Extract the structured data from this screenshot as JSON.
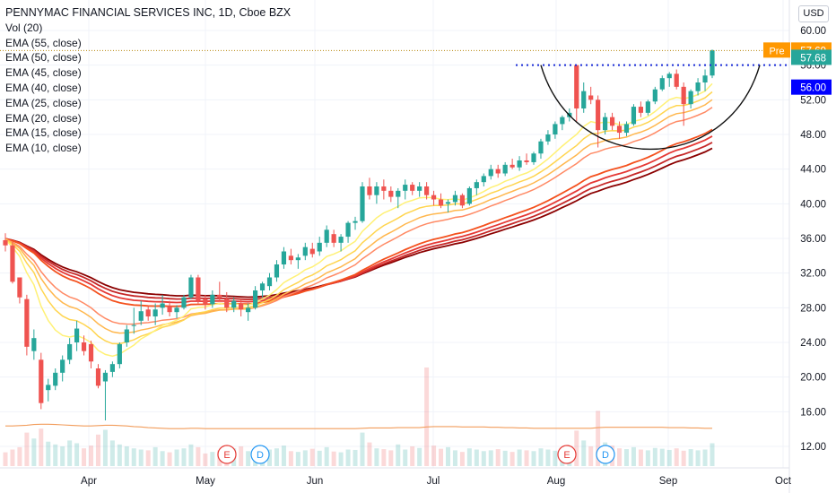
{
  "chart_data": {
    "type": "candlestick",
    "title": "PENNYMAC FINANCIAL SERVICES INC, 1D, Cboe BZX",
    "currency": "USD",
    "indicators": [
      "Vol (20)",
      "EMA (55, close)",
      "EMA (50, close)",
      "EMA (45, close)",
      "EMA (40, close)",
      "EMA (25, close)",
      "EMA (20, close)",
      "EMA (15, close)",
      "EMA (10, close)"
    ],
    "y_ticks": [
      "60.00",
      "56.00",
      "52.00",
      "48.00",
      "44.00",
      "40.00",
      "36.00",
      "32.00",
      "28.00",
      "24.00",
      "20.00",
      "16.00",
      "12.00"
    ],
    "ylim": [
      8.3,
      61.6
    ],
    "x_labels": [
      "Apr",
      "May",
      "Jun",
      "Jul",
      "Aug",
      "Sep",
      "Oct"
    ],
    "price_labels": [
      {
        "text": "Pre",
        "value": "57.69",
        "color": "#ff9800"
      },
      {
        "text": "",
        "value": "57.68",
        "color": "#0a66c2"
      },
      {
        "text": "",
        "value": "56.00",
        "color": "#0000ff"
      }
    ],
    "resistance_level": 56.0,
    "prepost_level": 57.69,
    "events": [
      {
        "label": "E",
        "type": "earnings",
        "month": "May"
      },
      {
        "label": "D",
        "type": "dividend",
        "month": "May"
      },
      {
        "label": "E",
        "type": "earnings",
        "month": "Aug"
      },
      {
        "label": "D",
        "type": "dividend",
        "month": "Aug"
      }
    ],
    "candles": [
      [
        35.8,
        36.6,
        34.5,
        35.2
      ],
      [
        35.2,
        35.6,
        30.8,
        31.0
      ],
      [
        31.5,
        31.5,
        28.5,
        29.2
      ],
      [
        29.0,
        29.5,
        22.5,
        23.5
      ],
      [
        23.0,
        25.5,
        22.0,
        24.5
      ],
      [
        22.0,
        22.8,
        16.3,
        17.0
      ],
      [
        18.5,
        19.8,
        17.2,
        19.1
      ],
      [
        19.0,
        21.0,
        18.5,
        20.5
      ],
      [
        20.5,
        22.5,
        19.5,
        22.0
      ],
      [
        22.0,
        24.5,
        21.5,
        23.8
      ],
      [
        24.0,
        26.5,
        23.0,
        25.6
      ],
      [
        24.0,
        24.8,
        22.5,
        23.0
      ],
      [
        23.8,
        24.2,
        21.0,
        21.8
      ],
      [
        21.0,
        21.5,
        18.7,
        19.0
      ],
      [
        19.5,
        20.8,
        15.0,
        20.5
      ],
      [
        20.6,
        21.8,
        20.0,
        21.5
      ],
      [
        21.5,
        24.0,
        21.0,
        23.8
      ],
      [
        24.0,
        26.0,
        23.5,
        25.5
      ],
      [
        26.0,
        28.0,
        25.0,
        26.0
      ],
      [
        26.5,
        28.8,
        26.0,
        27.6
      ],
      [
        27.8,
        28.2,
        26.5,
        27.0
      ],
      [
        27.0,
        28.5,
        26.0,
        27.8
      ],
      [
        28.0,
        29.5,
        27.2,
        28.5
      ],
      [
        28.2,
        28.8,
        27.0,
        27.5
      ],
      [
        27.5,
        28.3,
        26.8,
        28.0
      ],
      [
        28.0,
        29.5,
        27.8,
        29.2
      ],
      [
        29.2,
        31.8,
        29.0,
        31.5
      ],
      [
        31.5,
        31.8,
        28.5,
        28.8
      ],
      [
        29.0,
        29.5,
        27.8,
        28.4
      ],
      [
        28.4,
        30.0,
        28.0,
        29.5
      ],
      [
        29.5,
        31.0,
        28.7,
        29.2
      ],
      [
        29.0,
        29.8,
        27.5,
        28.0
      ],
      [
        28.0,
        29.2,
        27.5,
        28.8
      ],
      [
        28.5,
        29.0,
        27.0,
        27.8
      ],
      [
        27.5,
        28.5,
        26.5,
        28.0
      ],
      [
        28.0,
        30.5,
        27.8,
        30.0
      ],
      [
        30.0,
        31.0,
        29.2,
        30.8
      ],
      [
        30.5,
        32.0,
        30.0,
        31.5
      ],
      [
        31.5,
        33.5,
        31.0,
        33.0
      ],
      [
        33.0,
        35.0,
        32.5,
        34.5
      ],
      [
        34.0,
        34.8,
        33.0,
        33.5
      ],
      [
        33.5,
        34.2,
        32.5,
        33.8
      ],
      [
        34.0,
        35.5,
        33.5,
        35.0
      ],
      [
        34.8,
        35.5,
        33.8,
        34.2
      ],
      [
        34.5,
        36.2,
        34.0,
        35.5
      ],
      [
        35.5,
        37.5,
        35.0,
        37.0
      ],
      [
        36.5,
        37.0,
        35.0,
        35.5
      ],
      [
        35.5,
        36.5,
        34.5,
        36.2
      ],
      [
        36.2,
        38.0,
        35.5,
        37.8
      ],
      [
        37.8,
        38.5,
        37.0,
        38.0
      ],
      [
        38.0,
        42.5,
        37.8,
        42.0
      ],
      [
        42.0,
        43.0,
        40.5,
        41.0
      ],
      [
        41.0,
        42.5,
        40.0,
        42.0
      ],
      [
        42.0,
        42.8,
        40.5,
        41.5
      ],
      [
        41.5,
        42.0,
        40.2,
        40.8
      ],
      [
        40.8,
        41.8,
        39.5,
        41.5
      ],
      [
        41.5,
        42.8,
        40.5,
        42.2
      ],
      [
        42.2,
        42.5,
        41.0,
        41.5
      ],
      [
        41.5,
        42.5,
        40.8,
        42.0
      ],
      [
        42.0,
        42.5,
        40.5,
        41.0
      ],
      [
        41.0,
        41.5,
        39.8,
        40.5
      ],
      [
        40.5,
        41.2,
        39.5,
        39.8
      ],
      [
        40.0,
        40.5,
        39.0,
        40.2
      ],
      [
        40.2,
        41.5,
        39.8,
        41.0
      ],
      [
        41.0,
        41.2,
        39.5,
        39.8
      ],
      [
        40.0,
        42.0,
        39.8,
        41.8
      ],
      [
        41.8,
        42.8,
        41.0,
        42.5
      ],
      [
        42.5,
        43.5,
        42.0,
        43.2
      ],
      [
        43.2,
        44.5,
        42.8,
        44.0
      ],
      [
        44.0,
        44.5,
        43.0,
        43.5
      ],
      [
        43.5,
        44.8,
        43.2,
        44.5
      ],
      [
        44.5,
        45.2,
        44.0,
        44.2
      ],
      [
        44.2,
        45.5,
        43.8,
        45.0
      ],
      [
        45.0,
        45.8,
        44.5,
        44.8
      ],
      [
        44.8,
        46.0,
        44.5,
        45.8
      ],
      [
        45.8,
        47.5,
        45.2,
        47.2
      ],
      [
        47.2,
        48.5,
        46.8,
        48.0
      ],
      [
        48.0,
        49.5,
        47.5,
        49.2
      ],
      [
        49.2,
        50.2,
        48.5,
        50.0
      ],
      [
        50.0,
        51.0,
        49.5,
        50.5
      ],
      [
        56.0,
        56.0,
        49.5,
        51.0
      ],
      [
        51.0,
        54.0,
        50.5,
        53.0
      ],
      [
        52.5,
        53.5,
        51.5,
        52.0
      ],
      [
        52.0,
        52.5,
        46.5,
        48.5
      ],
      [
        48.5,
        50.5,
        48.0,
        50.0
      ],
      [
        50.0,
        50.5,
        48.5,
        49.0
      ],
      [
        49.0,
        49.5,
        47.5,
        48.2
      ],
      [
        48.2,
        49.5,
        47.8,
        49.2
      ],
      [
        49.2,
        51.5,
        49.0,
        51.2
      ],
      [
        51.2,
        51.8,
        50.0,
        50.5
      ],
      [
        50.5,
        52.0,
        50.2,
        51.8
      ],
      [
        51.8,
        53.5,
        51.5,
        53.2
      ],
      [
        53.2,
        54.8,
        53.0,
        54.5
      ],
      [
        54.5,
        55.2,
        53.5,
        55.0
      ],
      [
        55.0,
        55.5,
        53.2,
        53.5
      ],
      [
        53.5,
        54.0,
        49.0,
        51.5
      ],
      [
        51.5,
        53.2,
        51.0,
        53.0
      ],
      [
        53.0,
        54.5,
        52.5,
        54.0
      ],
      [
        54.0,
        55.5,
        53.0,
        54.8
      ],
      [
        54.8,
        57.8,
        54.5,
        57.7
      ]
    ],
    "volume": [
      3.5,
      4.2,
      4.8,
      8.5,
      7.0,
      9.5,
      6.2,
      5.5,
      5.0,
      6.5,
      5.8,
      4.5,
      5.2,
      8.0,
      9.2,
      6.5,
      5.5,
      5.0,
      4.5,
      4.2,
      4.0,
      4.8,
      3.8,
      3.5,
      4.2,
      4.5,
      5.5,
      4.8,
      3.2,
      3.6,
      4.0,
      3.5,
      4.5,
      5.0,
      3.8,
      3.9,
      4.6,
      4.2,
      4.5,
      5.2,
      3.8,
      3.6,
      4.0,
      4.4,
      3.9,
      4.8,
      3.7,
      3.5,
      4.2,
      4.1,
      8.5,
      6.0,
      4.5,
      4.3,
      4.0,
      5.5,
      4.2,
      5.0,
      4.6,
      25.0,
      5.2,
      4.4,
      4.8,
      4.0,
      3.6,
      4.5,
      4.2,
      3.8,
      4.0,
      4.3,
      3.9,
      3.6,
      4.2,
      4.0,
      3.8,
      4.5,
      4.2,
      3.9,
      4.6,
      4.4,
      9.0,
      6.5,
      5.0,
      14.0,
      6.0,
      5.2,
      4.5,
      4.3,
      4.8,
      4.2,
      4.0,
      4.6,
      4.4,
      4.1,
      4.5,
      3.9,
      4.3,
      4.0,
      4.2,
      5.8
    ],
    "vol_ma": [
      11.8,
      11.8,
      11.9,
      12.0,
      12.2,
      12.3,
      12.3,
      12.2,
      12.1,
      12.0,
      11.9,
      11.8,
      11.8,
      11.9,
      12.0,
      12.0,
      11.9,
      11.8,
      11.6,
      11.5,
      11.3,
      11.2,
      11.1,
      11.0,
      11.0,
      11.0,
      11.1,
      11.1,
      11.0,
      11.0,
      11.0,
      11.0,
      11.0,
      11.0,
      11.0,
      11.0,
      11.0,
      11.0,
      11.0,
      11.0,
      11.0,
      11.0,
      11.0,
      11.0,
      11.0,
      11.0,
      11.0,
      11.0,
      11.0,
      11.0,
      11.1,
      11.2,
      11.2,
      11.2,
      11.2,
      11.3,
      11.3,
      11.3,
      11.3,
      11.5,
      11.6,
      11.6,
      11.6,
      11.6,
      11.5,
      11.5,
      11.5,
      11.5,
      11.4,
      11.4,
      11.3,
      11.3,
      11.2,
      11.2,
      11.1,
      11.1,
      11.1,
      11.1,
      11.1,
      11.1,
      11.1,
      11.1,
      11.1,
      11.3,
      11.4,
      11.4,
      11.4,
      11.4,
      11.4,
      11.4,
      11.4,
      11.4,
      11.4,
      11.3,
      11.3,
      11.3,
      11.2,
      11.2,
      11.1,
      11.1
    ],
    "ema_periods": [
      10,
      15,
      20,
      25,
      40,
      45,
      50,
      55
    ],
    "ema_colors": [
      "#fff176",
      "#ffd54f",
      "#ffb74d",
      "#ff8a65",
      "#f4511e",
      "#e53935",
      "#c62828",
      "#8b0000"
    ],
    "cup_arc": {
      "from": 56.0,
      "bottom": 47.2
    }
  },
  "legend": {
    "title": "PENNYMAC FINANCIAL SERVICES INC, 1D, Cboe BZX",
    "lines": [
      "Vol (20)",
      "EMA (55, close)",
      "EMA (50, close)",
      "EMA (45, close)",
      "EMA (40, close)",
      "EMA (25, close)",
      "EMA (20, close)",
      "EMA (15, close)",
      "EMA (10, close)"
    ]
  },
  "currency_label": "USD"
}
